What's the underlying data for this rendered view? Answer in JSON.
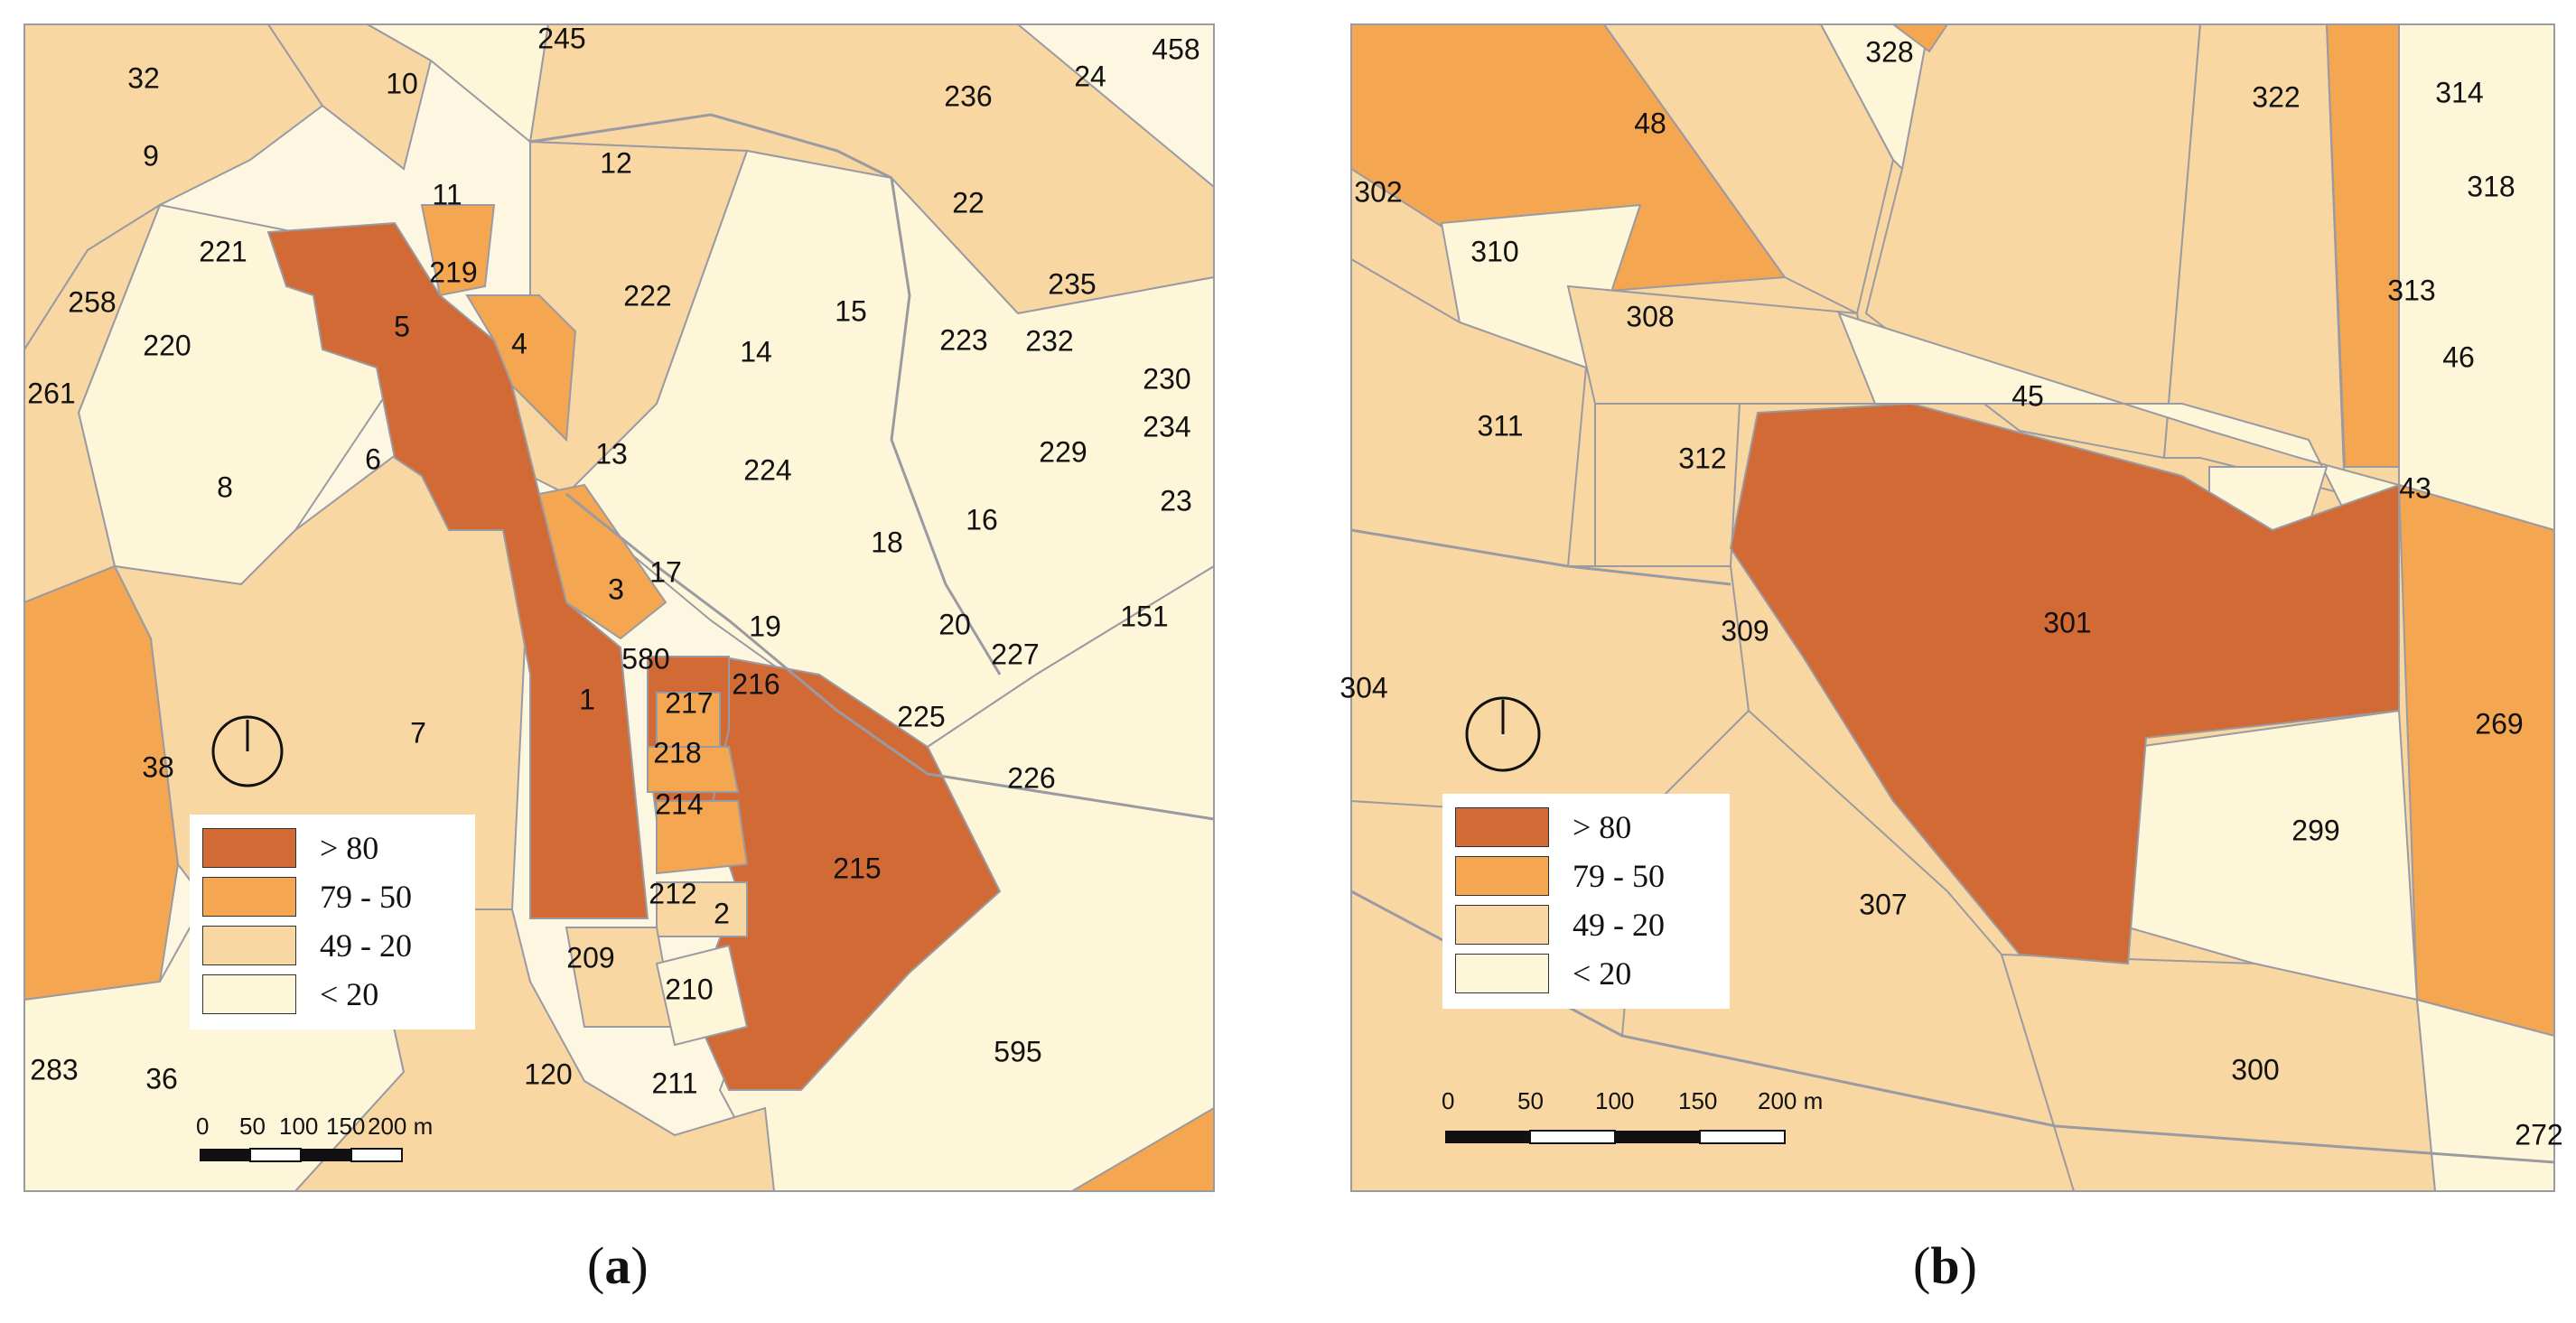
{
  "legend": {
    "classes": [
      {
        "label": "> 80",
        "color": "#d26a36"
      },
      {
        "label": "79 - 50",
        "color": "#f4a651"
      },
      {
        "label": "49 - 20",
        "color": "#f9d7a2"
      },
      {
        "label": "< 20",
        "color": "#fef6d8"
      }
    ]
  },
  "scale": {
    "ticks": [
      "0",
      "50",
      "100",
      "150",
      "200 m"
    ]
  },
  "panel_a": {
    "caption_letter": "a",
    "parcels": [
      "32",
      "10",
      "245",
      "458",
      "24",
      "236",
      "22",
      "9",
      "12",
      "11",
      "221",
      "219",
      "222",
      "258",
      "5",
      "4",
      "15",
      "14",
      "223",
      "235",
      "232",
      "220",
      "230",
      "261",
      "234",
      "6",
      "8",
      "13",
      "224",
      "229",
      "23",
      "18",
      "16",
      "3",
      "17",
      "19",
      "20",
      "227",
      "151",
      "580",
      "216",
      "1",
      "217",
      "38",
      "7",
      "225",
      "218",
      "226",
      "214",
      "215",
      "212",
      "2",
      "209",
      "210",
      "283",
      "36",
      "120",
      "211",
      "595"
    ]
  },
  "panel_b": {
    "caption_letter": "b",
    "parcels": [
      "328",
      "322",
      "314",
      "48",
      "318",
      "302",
      "310",
      "308",
      "313",
      "46",
      "45",
      "311",
      "312",
      "43",
      "301",
      "309",
      "304",
      "269",
      "299",
      "307",
      "300",
      "272"
    ]
  },
  "colors": {
    "background": "#fdf6e0",
    "parcel_border": "#9a9aa2",
    "building_outline": "#b9ad97"
  }
}
